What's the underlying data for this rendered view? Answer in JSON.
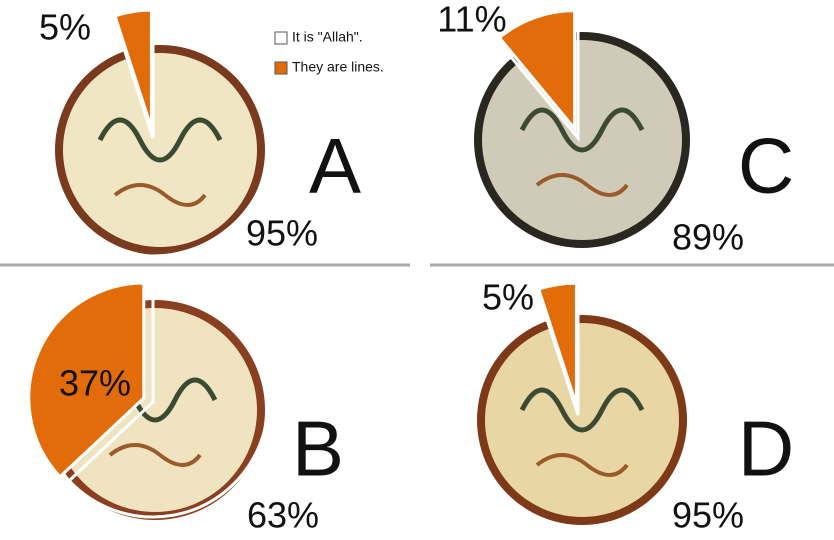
{
  "chart_data": [
    {
      "type": "pie",
      "title": "A",
      "categories": [
        "It is \"Allah\".",
        "They are lines."
      ],
      "values": [
        95,
        5
      ],
      "value_labels": [
        "95%",
        "5%"
      ],
      "colors": [
        "#ffffff",
        "#e36c0a"
      ]
    },
    {
      "type": "pie",
      "title": "B",
      "values": [
        63,
        37
      ],
      "value_labels": [
        "63%",
        "37%"
      ],
      "colors": [
        "#ffffff",
        "#e36c0a"
      ]
    },
    {
      "type": "pie",
      "title": "C",
      "values": [
        89,
        11
      ],
      "value_labels": [
        "89%",
        "11%"
      ],
      "colors": [
        "#ffffff",
        "#e36c0a"
      ]
    },
    {
      "type": "pie",
      "title": "D",
      "values": [
        95,
        5
      ],
      "value_labels": [
        "95%",
        "5%"
      ],
      "colors": [
        "#ffffff",
        "#e36c0a"
      ]
    }
  ]
}
